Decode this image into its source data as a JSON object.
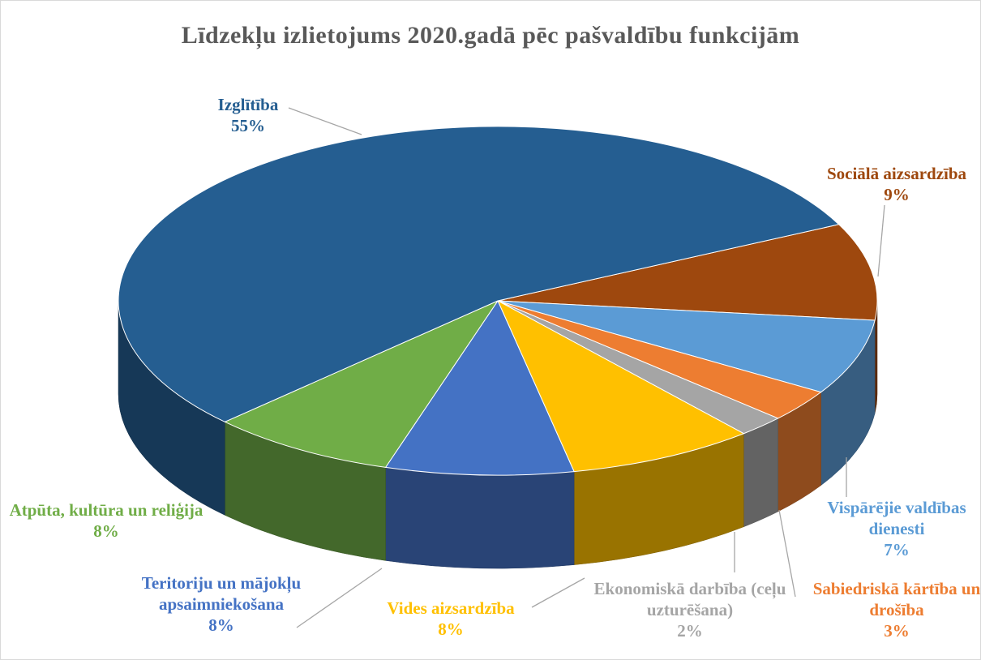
{
  "chart_data": {
    "type": "pie3d",
    "title": "Līdzekļu izlietojums 2020.gadā pēc pašvaldību funkcijām",
    "categories": [
      "Sociālā aizsardzība",
      "Vispārējie valdības dienesti",
      "Sabiedriskā kārtība un drošība",
      "Ekonomiskā darbība (ceļu uzturēšana)",
      "Vides aizsardzība",
      "Teritoriju un mājokļu apsaimniekošana",
      "Atpūta, kultūra un reliģija",
      "Izglītība"
    ],
    "values": [
      9,
      7,
      3,
      2,
      8,
      8,
      8,
      55
    ],
    "value_labels": [
      "9%",
      "7%",
      "3%",
      "2%",
      "8%",
      "8%",
      "8%",
      "55%"
    ],
    "colors": [
      "#9e480e",
      "#5b9bd5",
      "#ed7d31",
      "#a5a5a5",
      "#ffc000",
      "#4472c4",
      "#70ad47",
      "#255e91"
    ]
  }
}
